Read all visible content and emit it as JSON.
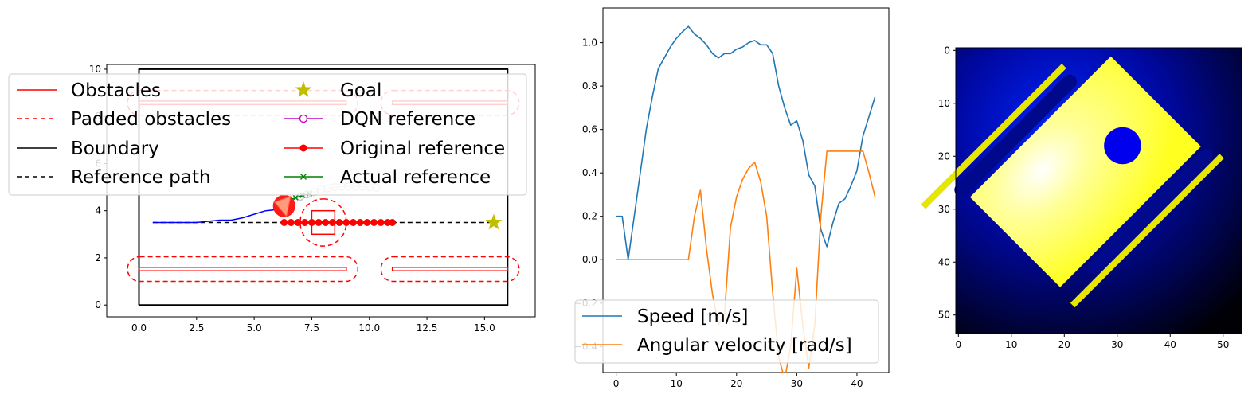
{
  "chart_data": [
    {
      "type": "scatter",
      "xlim": [
        -1.4,
        17.2
      ],
      "ylim": [
        -0.5,
        10.2
      ],
      "x_ticks": [
        "0.0",
        "2.5",
        "5.0",
        "7.5",
        "10.0",
        "12.5",
        "15.0"
      ],
      "y_ticks": [
        "0",
        "2",
        "4",
        "6",
        "8",
        "10"
      ],
      "legend": {
        "placement": "top-left",
        "entries": [
          "Obstacles",
          "Padded obstacles",
          "Boundary",
          "Reference path",
          "Goal",
          "DQN reference",
          "Original reference",
          "Actual reference"
        ]
      },
      "boundary": [
        [
          0,
          0
        ],
        [
          16,
          0
        ],
        [
          16,
          10
        ],
        [
          0,
          10
        ],
        [
          0,
          0
        ]
      ],
      "obstacles": [
        {
          "x0": 0,
          "x1": 9,
          "y0": 1.45,
          "y1": 1.6
        },
        {
          "x0": 11,
          "x1": 16,
          "y0": 1.45,
          "y1": 1.6
        },
        {
          "x0": 0,
          "x1": 9,
          "y0": 8.5,
          "y1": 8.65
        },
        {
          "x0": 11,
          "x1": 16,
          "y0": 8.5,
          "y1": 8.65
        },
        {
          "x0": 7.5,
          "x1": 8.5,
          "y0": 3.0,
          "y1": 4.0
        }
      ],
      "padded_obstacles": [
        {
          "x0": -0.5,
          "x1": 9.5,
          "y0": 1.0,
          "y1": 2.05
        },
        {
          "x0": 10.5,
          "x1": 16.5,
          "y0": 1.0,
          "y1": 2.05
        },
        {
          "x0": -0.5,
          "x1": 9.5,
          "y0": 8.05,
          "y1": 9.1
        },
        {
          "x0": 10.5,
          "x1": 16.5,
          "y0": 8.05,
          "y1": 9.1
        },
        {
          "x0": 7.0,
          "x1": 9.0,
          "y0": 2.5,
          "y1": 4.5
        }
      ],
      "reference_path": {
        "x": [
          0.6,
          15.4
        ],
        "y": [
          3.5,
          3.5
        ]
      },
      "goal": {
        "x": 15.4,
        "y": 3.5
      },
      "trajectory": {
        "x": [
          0.6,
          1.5,
          2.5,
          3.0,
          3.5,
          4.0,
          4.5,
          5.0,
          5.5,
          6.0,
          6.3
        ],
        "y": [
          3.5,
          3.5,
          3.5,
          3.55,
          3.6,
          3.6,
          3.7,
          3.85,
          4.0,
          4.05,
          4.1
        ]
      },
      "original_reference": {
        "x": [
          6.3,
          6.6,
          6.9,
          7.2,
          7.5,
          7.8,
          8.1,
          8.4,
          8.7,
          9.0,
          9.3,
          9.6,
          9.9,
          10.2,
          10.5,
          10.8,
          11.0
        ],
        "y": [
          3.5,
          3.5,
          3.5,
          3.5,
          3.5,
          3.5,
          3.5,
          3.5,
          3.5,
          3.5,
          3.5,
          3.5,
          3.5,
          3.5,
          3.5,
          3.5,
          3.5
        ]
      },
      "dqn_reference": {
        "x": [
          7.0,
          7.3,
          7.6,
          7.9,
          8.2,
          8.5,
          8.8,
          9.1,
          9.4,
          9.7,
          10.0,
          10.3
        ],
        "y": [
          4.6,
          4.7,
          4.8,
          4.9,
          4.95,
          5.0,
          5.02,
          5.02,
          5.02,
          5.02,
          5.0,
          4.98
        ]
      },
      "actual_reference": {
        "x": [
          6.5,
          6.8,
          7.1,
          7.4
        ],
        "y": [
          4.45,
          4.55,
          4.65,
          4.72
        ]
      },
      "robot": {
        "x": 6.3,
        "y": 4.2
      }
    },
    {
      "type": "line",
      "xlim": [
        -2.2,
        45.3
      ],
      "ylim": [
        -0.52,
        1.16
      ],
      "x_ticks": [
        "0",
        "10",
        "20",
        "30",
        "40"
      ],
      "y_ticks": [
        "−0.4",
        "−0.2",
        "0.0",
        "0.2",
        "0.4",
        "0.6",
        "0.8",
        "1.0"
      ],
      "legend": {
        "placement": "lower-left",
        "entries": [
          "Speed [m/s]",
          "Angular velocity [rad/s]"
        ]
      },
      "series": [
        {
          "name": "Speed [m/s]",
          "color": "#1f77b4",
          "x": [
            0,
            1,
            2,
            3,
            4,
            5,
            6,
            7,
            8,
            9,
            10,
            11,
            12,
            13,
            14,
            15,
            16,
            17,
            18,
            19,
            20,
            21,
            22,
            23,
            24,
            25,
            26,
            27,
            28,
            29,
            30,
            31,
            32,
            33,
            34,
            35,
            36,
            37,
            38,
            39,
            40,
            41,
            42,
            43
          ],
          "values": [
            0.2,
            0.2,
            0.0,
            0.2,
            0.4,
            0.6,
            0.75,
            0.88,
            0.93,
            0.98,
            1.02,
            1.05,
            1.075,
            1.04,
            1.02,
            0.99,
            0.95,
            0.93,
            0.95,
            0.95,
            0.97,
            0.98,
            1.0,
            1.01,
            0.99,
            0.99,
            0.95,
            0.8,
            0.7,
            0.62,
            0.64,
            0.55,
            0.39,
            0.34,
            0.14,
            0.06,
            0.17,
            0.26,
            0.28,
            0.34,
            0.41,
            0.57,
            0.66,
            0.75
          ]
        },
        {
          "name": "Angular velocity [rad/s]",
          "color": "#ff7f0e",
          "x": [
            0,
            1,
            2,
            3,
            4,
            5,
            6,
            7,
            8,
            9,
            10,
            11,
            12,
            13,
            14,
            15,
            16,
            17,
            18,
            19,
            20,
            21,
            22,
            23,
            24,
            25,
            26,
            27,
            28,
            29,
            30,
            31,
            32,
            33,
            34,
            35,
            36,
            37,
            38,
            39,
            40,
            41,
            42,
            43
          ],
          "values": [
            0,
            0,
            0,
            0,
            0,
            0,
            0,
            0,
            0,
            0,
            0,
            0,
            0,
            0.2,
            0.32,
            0.05,
            -0.16,
            -0.3,
            -0.25,
            0.15,
            0.29,
            0.37,
            0.42,
            0.45,
            0.36,
            0.2,
            -0.15,
            -0.45,
            -0.55,
            -0.4,
            -0.04,
            -0.3,
            -0.5,
            -0.3,
            0.2,
            0.5,
            0.5,
            0.5,
            0.5,
            0.5,
            0.5,
            0.5,
            0.4,
            0.29
          ]
        }
      ]
    },
    {
      "type": "heatmap",
      "xlim": [
        -0.5,
        53.5
      ],
      "ylim": [
        53.5,
        -0.5
      ],
      "x_ticks": [
        "0",
        "10",
        "20",
        "30",
        "40",
        "50"
      ],
      "y_ticks": [
        "0",
        "10",
        "20",
        "30",
        "40",
        "50"
      ],
      "colormap": "black-blue-white-yellow",
      "free_rectangle_center": [
        24,
        24
      ],
      "free_rectangle_angle_deg": -45,
      "hole_center": [
        31,
        18
      ],
      "hole_radius": 3.5
    }
  ]
}
